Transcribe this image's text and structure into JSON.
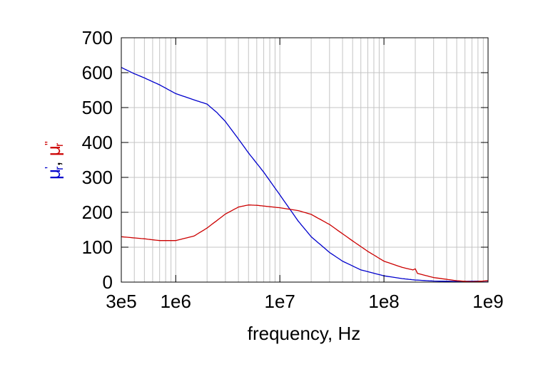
{
  "chart_data": {
    "type": "line",
    "xlabel": "frequency, Hz",
    "ylabel": {
      "mu": "μ",
      "sub": "r",
      "prime": "'",
      "dprime": "''",
      "sep": ","
    },
    "x_scale": "log",
    "xlim": [
      300000,
      1000000000
    ],
    "ylim": [
      0,
      700
    ],
    "grid": true,
    "x_ticks": [
      {
        "value": 300000,
        "label": "3e5"
      },
      {
        "value": 1000000,
        "label": "1e6"
      },
      {
        "value": 10000000,
        "label": "1e7"
      },
      {
        "value": 100000000,
        "label": "1e8"
      },
      {
        "value": 1000000000,
        "label": "1e9"
      }
    ],
    "y_ticks": [
      {
        "value": 0,
        "label": "0"
      },
      {
        "value": 100,
        "label": "100"
      },
      {
        "value": 200,
        "label": "200"
      },
      {
        "value": 300,
        "label": "300"
      },
      {
        "value": 400,
        "label": "400"
      },
      {
        "value": 500,
        "label": "500"
      },
      {
        "value": 600,
        "label": "600"
      },
      {
        "value": 700,
        "label": "700"
      }
    ],
    "series": [
      {
        "color": "#0000cc",
        "x": [
          300000,
          400000,
          500000,
          700000,
          1000000,
          1500000,
          2000000,
          2500000,
          3000000,
          4000000,
          5000000,
          7000000,
          10000000,
          15000000,
          20000000,
          30000000,
          40000000,
          60000000,
          100000000,
          150000000,
          200000000,
          300000000,
          500000000,
          1000000000
        ],
        "values": [
          615,
          597,
          585,
          565,
          540,
          522,
          510,
          485,
          460,
          410,
          370,
          315,
          250,
          175,
          130,
          85,
          60,
          35,
          18,
          10,
          6,
          3,
          2,
          3
        ]
      },
      {
        "color": "#cc0000",
        "x": [
          300000,
          500000,
          700000,
          1000000,
          1500000,
          2000000,
          3000000,
          4000000,
          5000000,
          6000000,
          8000000,
          10000000,
          15000000,
          20000000,
          30000000,
          50000000,
          70000000,
          100000000,
          150000000,
          190000000,
          200000000,
          210000000,
          300000000,
          500000000,
          700000000,
          1000000000
        ],
        "values": [
          130,
          124,
          119,
          119,
          132,
          155,
          195,
          215,
          221,
          220,
          216,
          213,
          205,
          194,
          165,
          118,
          88,
          60,
          42,
          35,
          38,
          25,
          13,
          4,
          1,
          4
        ]
      }
    ]
  }
}
